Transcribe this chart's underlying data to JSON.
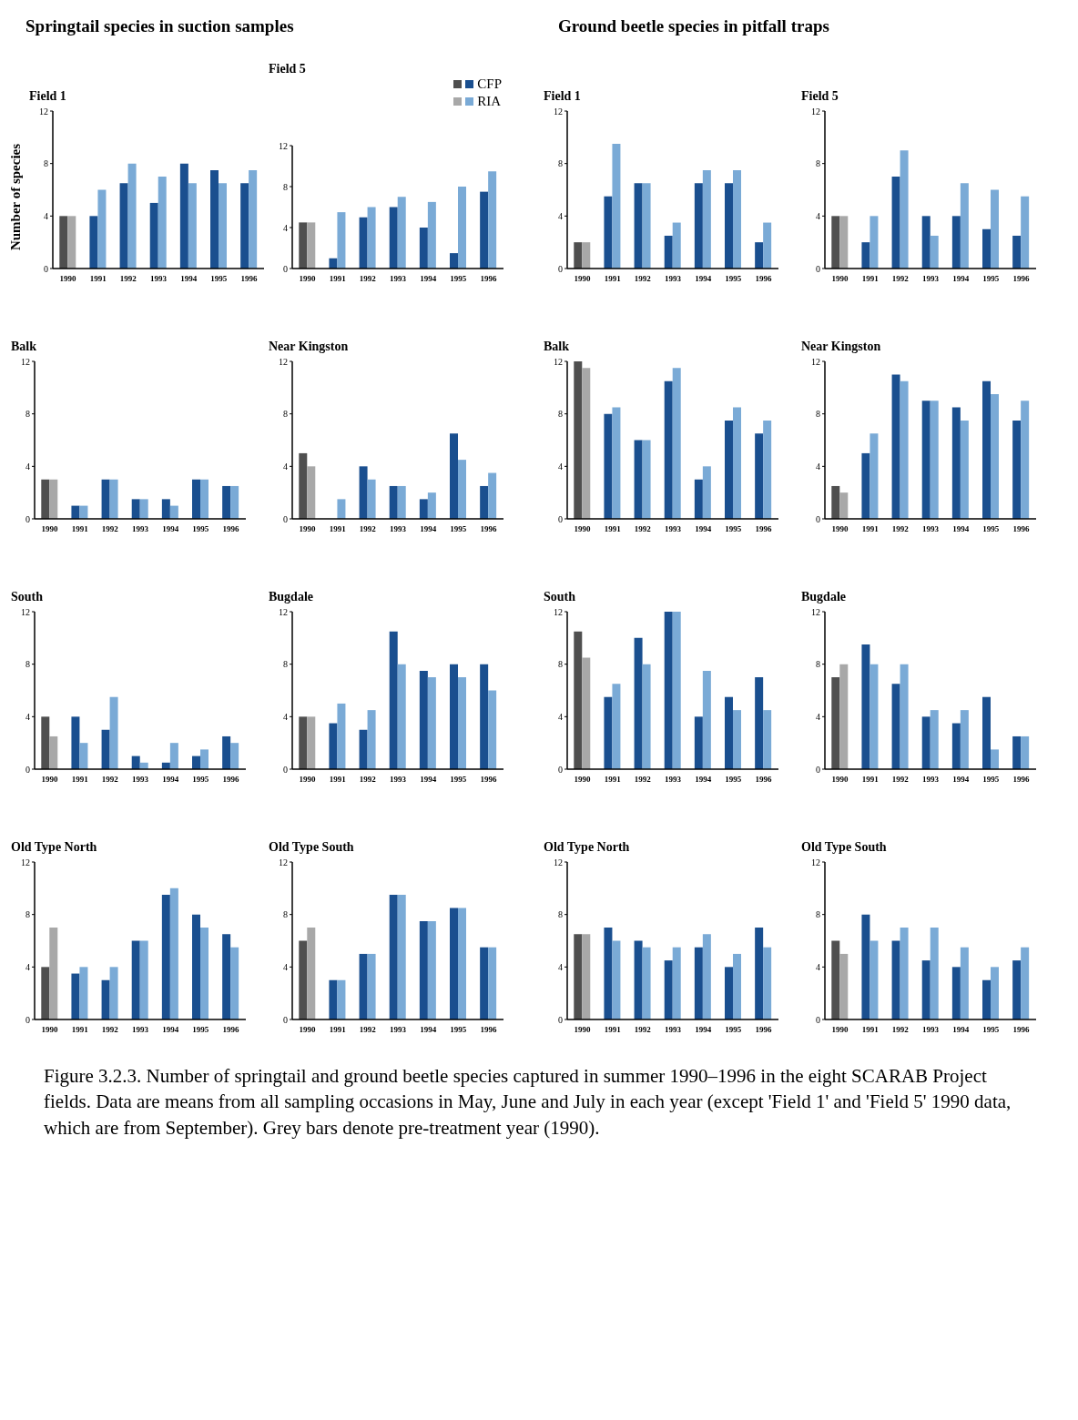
{
  "chart_data": [
    {
      "type": "bar",
      "title": "Field 1",
      "ylabel": "Number of species",
      "annotations": [
        "Springtail species in suction samples"
      ],
      "categories": [
        "1990",
        "1991",
        "1992",
        "1993",
        "1994",
        "1995",
        "1996"
      ],
      "ylim": [
        0,
        12
      ],
      "yticks": [
        0,
        4,
        8,
        12
      ],
      "series": [
        {
          "colors": [
            "#4f4f4f",
            "#1a4f8f",
            "#1a4f8f",
            "#1a4f8f",
            "#1a4f8f",
            "#1a4f8f",
            "#1a4f8f"
          ],
          "values": [
            4,
            4,
            6.5,
            5,
            8,
            7.5,
            6.5
          ]
        },
        {
          "colors": [
            "#a8a8a8",
            "#7aaad6",
            "#7aaad6",
            "#7aaad6",
            "#7aaad6",
            "#7aaad6",
            "#7aaad6"
          ],
          "values": [
            4,
            6,
            8,
            7,
            6.5,
            6.5,
            7.5
          ]
        }
      ]
    },
    {
      "type": "bar",
      "title": "Field 5",
      "legend": "top right",
      "categories": [
        "1990",
        "1991",
        "1992",
        "1993",
        "1994",
        "1995",
        "1996"
      ],
      "ylim": [
        0,
        12
      ],
      "yticks": [
        0,
        4,
        8,
        12
      ],
      "series": [
        {
          "name": "CFP",
          "colors": [
            "#4f4f4f",
            "#1a4f8f",
            "#1a4f8f",
            "#1a4f8f",
            "#1a4f8f",
            "#1a4f8f",
            "#1a4f8f"
          ],
          "values": [
            4.5,
            1,
            5,
            6,
            4,
            1.5,
            7.5
          ]
        },
        {
          "name": "RIA",
          "colors": [
            "#a8a8a8",
            "#7aaad6",
            "#7aaad6",
            "#7aaad6",
            "#7aaad6",
            "#7aaad6",
            "#7aaad6"
          ],
          "values": [
            4.5,
            5.5,
            6,
            7,
            6.5,
            8,
            9.5
          ]
        }
      ]
    },
    {
      "type": "bar",
      "title": "Balk",
      "categories": [
        "1990",
        "1991",
        "1992",
        "1993",
        "1994",
        "1995",
        "1996"
      ],
      "ylim": [
        0,
        12
      ],
      "yticks": [
        0,
        4,
        8,
        12
      ],
      "series": [
        {
          "colors": [
            "#4f4f4f",
            "#1a4f8f",
            "#1a4f8f",
            "#1a4f8f",
            "#1a4f8f",
            "#1a4f8f",
            "#1a4f8f"
          ],
          "values": [
            3,
            1,
            3,
            1.5,
            1.5,
            3,
            2.5
          ]
        },
        {
          "colors": [
            "#a8a8a8",
            "#7aaad6",
            "#7aaad6",
            "#7aaad6",
            "#7aaad6",
            "#7aaad6",
            "#7aaad6"
          ],
          "values": [
            3,
            1,
            3,
            1.5,
            1,
            3,
            2.5
          ]
        }
      ]
    },
    {
      "type": "bar",
      "title": "Near Kingston",
      "categories": [
        "1990",
        "1991",
        "1992",
        "1993",
        "1994",
        "1995",
        "1996"
      ],
      "ylim": [
        0,
        12
      ],
      "yticks": [
        0,
        4,
        8,
        12
      ],
      "series": [
        {
          "colors": [
            "#4f4f4f",
            "#1a4f8f",
            "#1a4f8f",
            "#1a4f8f",
            "#1a4f8f",
            "#1a4f8f",
            "#1a4f8f"
          ],
          "values": [
            5,
            0,
            4,
            2.5,
            1.5,
            6.5,
            2.5
          ]
        },
        {
          "colors": [
            "#a8a8a8",
            "#7aaad6",
            "#7aaad6",
            "#7aaad6",
            "#7aaad6",
            "#7aaad6",
            "#7aaad6"
          ],
          "values": [
            4,
            1.5,
            3,
            2.5,
            2,
            4.5,
            3.5
          ]
        }
      ]
    },
    {
      "type": "bar",
      "title": "South",
      "categories": [
        "1990",
        "1991",
        "1992",
        "1993",
        "1994",
        "1995",
        "1996"
      ],
      "ylim": [
        0,
        12
      ],
      "yticks": [
        0,
        4,
        8,
        12
      ],
      "series": [
        {
          "colors": [
            "#4f4f4f",
            "#1a4f8f",
            "#1a4f8f",
            "#1a4f8f",
            "#1a4f8f",
            "#1a4f8f",
            "#1a4f8f"
          ],
          "values": [
            4,
            4,
            3,
            1,
            0.5,
            1,
            2.5
          ]
        },
        {
          "colors": [
            "#a8a8a8",
            "#7aaad6",
            "#7aaad6",
            "#7aaad6",
            "#7aaad6",
            "#7aaad6",
            "#7aaad6"
          ],
          "values": [
            2.5,
            2,
            5.5,
            0.5,
            2,
            1.5,
            2
          ]
        }
      ]
    },
    {
      "type": "bar",
      "title": "Bugdale",
      "categories": [
        "1990",
        "1991",
        "1992",
        "1993",
        "1994",
        "1995",
        "1996"
      ],
      "ylim": [
        0,
        12
      ],
      "yticks": [
        0,
        4,
        8,
        12
      ],
      "series": [
        {
          "colors": [
            "#4f4f4f",
            "#1a4f8f",
            "#1a4f8f",
            "#1a4f8f",
            "#1a4f8f",
            "#1a4f8f",
            "#1a4f8f"
          ],
          "values": [
            4,
            3.5,
            3,
            10.5,
            7.5,
            8,
            8
          ]
        },
        {
          "colors": [
            "#a8a8a8",
            "#7aaad6",
            "#7aaad6",
            "#7aaad6",
            "#7aaad6",
            "#7aaad6",
            "#7aaad6"
          ],
          "values": [
            4,
            5,
            4.5,
            8,
            7,
            7,
            6
          ]
        }
      ]
    },
    {
      "type": "bar",
      "title": "Old Type North",
      "categories": [
        "1990",
        "1991",
        "1992",
        "1993",
        "1994",
        "1995",
        "1996"
      ],
      "ylim": [
        0,
        12
      ],
      "yticks": [
        0,
        4,
        8,
        12
      ],
      "series": [
        {
          "colors": [
            "#4f4f4f",
            "#1a4f8f",
            "#1a4f8f",
            "#1a4f8f",
            "#1a4f8f",
            "#1a4f8f",
            "#1a4f8f"
          ],
          "values": [
            4,
            3.5,
            3,
            6,
            9.5,
            8,
            6.5
          ]
        },
        {
          "colors": [
            "#a8a8a8",
            "#7aaad6",
            "#7aaad6",
            "#7aaad6",
            "#7aaad6",
            "#7aaad6",
            "#7aaad6"
          ],
          "values": [
            7,
            4,
            4,
            6,
            10,
            7,
            5.5
          ]
        }
      ]
    },
    {
      "type": "bar",
      "title": "Old Type South",
      "categories": [
        "1990",
        "1991",
        "1992",
        "1993",
        "1994",
        "1995",
        "1996"
      ],
      "ylim": [
        0,
        12
      ],
      "yticks": [
        0,
        4,
        8,
        12
      ],
      "series": [
        {
          "colors": [
            "#4f4f4f",
            "#1a4f8f",
            "#1a4f8f",
            "#1a4f8f",
            "#1a4f8f",
            "#1a4f8f",
            "#1a4f8f"
          ],
          "values": [
            6,
            3,
            5,
            9.5,
            7.5,
            8.5,
            5.5
          ]
        },
        {
          "colors": [
            "#a8a8a8",
            "#7aaad6",
            "#7aaad6",
            "#7aaad6",
            "#7aaad6",
            "#7aaad6",
            "#7aaad6"
          ],
          "values": [
            7,
            3,
            5,
            9.5,
            7.5,
            8.5,
            5.5
          ]
        }
      ]
    },
    {
      "type": "bar",
      "title": "Field 1",
      "annotations": [
        "Ground beetle species in pitfall traps"
      ],
      "categories": [
        "1990",
        "1991",
        "1992",
        "1993",
        "1994",
        "1995",
        "1996"
      ],
      "ylim": [
        0,
        12
      ],
      "yticks": [
        0,
        4,
        8,
        12
      ],
      "series": [
        {
          "colors": [
            "#4f4f4f",
            "#1a4f8f",
            "#1a4f8f",
            "#1a4f8f",
            "#1a4f8f",
            "#1a4f8f",
            "#1a4f8f"
          ],
          "values": [
            2,
            5.5,
            6.5,
            2.5,
            6.5,
            6.5,
            2
          ]
        },
        {
          "colors": [
            "#a8a8a8",
            "#7aaad6",
            "#7aaad6",
            "#7aaad6",
            "#7aaad6",
            "#7aaad6",
            "#7aaad6"
          ],
          "values": [
            2,
            9.5,
            6.5,
            3.5,
            7.5,
            7.5,
            3.5
          ]
        }
      ]
    },
    {
      "type": "bar",
      "title": "Field 5",
      "categories": [
        "1990",
        "1991",
        "1992",
        "1993",
        "1994",
        "1995",
        "1996"
      ],
      "ylim": [
        0,
        12
      ],
      "yticks": [
        0,
        4,
        8,
        12
      ],
      "series": [
        {
          "colors": [
            "#4f4f4f",
            "#1a4f8f",
            "#1a4f8f",
            "#1a4f8f",
            "#1a4f8f",
            "#1a4f8f",
            "#1a4f8f"
          ],
          "values": [
            4,
            2,
            7,
            4,
            4,
            3,
            2.5
          ]
        },
        {
          "colors": [
            "#a8a8a8",
            "#7aaad6",
            "#7aaad6",
            "#7aaad6",
            "#7aaad6",
            "#7aaad6",
            "#7aaad6"
          ],
          "values": [
            4,
            4,
            9,
            2.5,
            6.5,
            6,
            5.5
          ]
        }
      ]
    },
    {
      "type": "bar",
      "title": "Balk",
      "categories": [
        "1990",
        "1991",
        "1992",
        "1993",
        "1994",
        "1995",
        "1996"
      ],
      "ylim": [
        0,
        12
      ],
      "yticks": [
        0,
        4,
        8,
        12
      ],
      "series": [
        {
          "colors": [
            "#4f4f4f",
            "#1a4f8f",
            "#1a4f8f",
            "#1a4f8f",
            "#1a4f8f",
            "#1a4f8f",
            "#1a4f8f"
          ],
          "values": [
            12,
            8,
            6,
            10.5,
            3,
            7.5,
            6.5
          ]
        },
        {
          "colors": [
            "#a8a8a8",
            "#7aaad6",
            "#7aaad6",
            "#7aaad6",
            "#7aaad6",
            "#7aaad6",
            "#7aaad6"
          ],
          "values": [
            11.5,
            8.5,
            6,
            11.5,
            4,
            8.5,
            7.5
          ]
        }
      ]
    },
    {
      "type": "bar",
      "title": "Near Kingston",
      "categories": [
        "1990",
        "1991",
        "1992",
        "1993",
        "1994",
        "1995",
        "1996"
      ],
      "ylim": [
        0,
        12
      ],
      "yticks": [
        0,
        4,
        8,
        12
      ],
      "series": [
        {
          "colors": [
            "#4f4f4f",
            "#1a4f8f",
            "#1a4f8f",
            "#1a4f8f",
            "#1a4f8f",
            "#1a4f8f",
            "#1a4f8f"
          ],
          "values": [
            2.5,
            5,
            11,
            9,
            8.5,
            10.5,
            7.5
          ]
        },
        {
          "colors": [
            "#a8a8a8",
            "#7aaad6",
            "#7aaad6",
            "#7aaad6",
            "#7aaad6",
            "#7aaad6",
            "#7aaad6"
          ],
          "values": [
            2,
            6.5,
            10.5,
            9,
            7.5,
            9.5,
            9
          ]
        }
      ]
    },
    {
      "type": "bar",
      "title": "South",
      "categories": [
        "1990",
        "1991",
        "1992",
        "1993",
        "1994",
        "1995",
        "1996"
      ],
      "ylim": [
        0,
        12
      ],
      "yticks": [
        0,
        4,
        8,
        12
      ],
      "series": [
        {
          "colors": [
            "#4f4f4f",
            "#1a4f8f",
            "#1a4f8f",
            "#1a4f8f",
            "#1a4f8f",
            "#1a4f8f",
            "#1a4f8f"
          ],
          "values": [
            10.5,
            5.5,
            10,
            12,
            4,
            5.5,
            7
          ]
        },
        {
          "colors": [
            "#a8a8a8",
            "#7aaad6",
            "#7aaad6",
            "#7aaad6",
            "#7aaad6",
            "#7aaad6",
            "#7aaad6"
          ],
          "values": [
            8.5,
            6.5,
            8,
            12,
            7.5,
            4.5,
            4.5
          ]
        }
      ]
    },
    {
      "type": "bar",
      "title": "Bugdale",
      "categories": [
        "1990",
        "1991",
        "1992",
        "1993",
        "1994",
        "1995",
        "1996"
      ],
      "ylim": [
        0,
        12
      ],
      "yticks": [
        0,
        4,
        8,
        12
      ],
      "series": [
        {
          "colors": [
            "#4f4f4f",
            "#1a4f8f",
            "#1a4f8f",
            "#1a4f8f",
            "#1a4f8f",
            "#1a4f8f",
            "#1a4f8f"
          ],
          "values": [
            7,
            9.5,
            6.5,
            4,
            3.5,
            5.5,
            2.5
          ]
        },
        {
          "colors": [
            "#a8a8a8",
            "#7aaad6",
            "#7aaad6",
            "#7aaad6",
            "#7aaad6",
            "#7aaad6",
            "#7aaad6"
          ],
          "values": [
            8,
            8,
            8,
            4.5,
            4.5,
            1.5,
            2.5
          ]
        }
      ]
    },
    {
      "type": "bar",
      "title": "Old Type North",
      "categories": [
        "1990",
        "1991",
        "1992",
        "1993",
        "1994",
        "1995",
        "1996"
      ],
      "ylim": [
        0,
        12
      ],
      "yticks": [
        0,
        4,
        8,
        12
      ],
      "series": [
        {
          "colors": [
            "#4f4f4f",
            "#1a4f8f",
            "#1a4f8f",
            "#1a4f8f",
            "#1a4f8f",
            "#1a4f8f",
            "#1a4f8f"
          ],
          "values": [
            6.5,
            7,
            6,
            4.5,
            5.5,
            4,
            7
          ]
        },
        {
          "colors": [
            "#a8a8a8",
            "#7aaad6",
            "#7aaad6",
            "#7aaad6",
            "#7aaad6",
            "#7aaad6",
            "#7aaad6"
          ],
          "values": [
            6.5,
            6,
            5.5,
            5.5,
            6.5,
            5,
            5.5
          ]
        }
      ]
    },
    {
      "type": "bar",
      "title": "Old Type South",
      "annotations": [
        "Figure 3.2.3.  Number of springtail and ground beetle species captured in summer 1990–1996 in the eight SCARAB Project fields.  Data are means from all sampling occasions in May, June and July in each year (except 'Field 1' and 'Field 5' 1990 data, which are from September).  Grey bars denote pre-treatment year (1990)."
      ],
      "categories": [
        "1990",
        "1991",
        "1992",
        "1993",
        "1994",
        "1995",
        "1996"
      ],
      "ylim": [
        0,
        12
      ],
      "yticks": [
        0,
        4,
        8,
        12
      ],
      "series": [
        {
          "colors": [
            "#4f4f4f",
            "#1a4f8f",
            "#1a4f8f",
            "#1a4f8f",
            "#1a4f8f",
            "#1a4f8f",
            "#1a4f8f"
          ],
          "values": [
            6,
            8,
            6,
            4.5,
            4,
            3,
            4.5
          ]
        },
        {
          "colors": [
            "#a8a8a8",
            "#7aaad6",
            "#7aaad6",
            "#7aaad6",
            "#7aaad6",
            "#7aaad6",
            "#7aaad6"
          ],
          "values": [
            5,
            6,
            7,
            7,
            5.5,
            4,
            5.5
          ]
        }
      ]
    }
  ]
}
